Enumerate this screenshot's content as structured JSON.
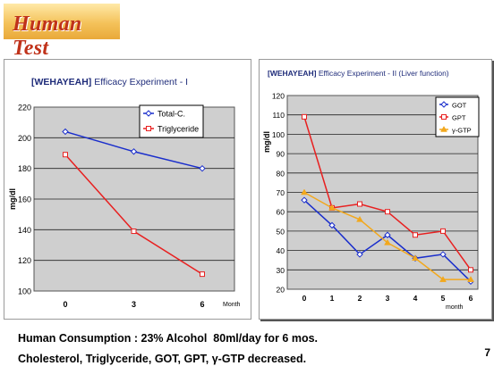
{
  "slide": {
    "title": "Human Test",
    "footer_line1": "Human Consumption : 23% Alcohol  80ml/day for 6 mos.",
    "footer_line2": "Cholesterol, Triglyceride, GOT, GPT, γ-GTP decreased.",
    "page_number": "7",
    "colors": {
      "title": "#c0321a",
      "title_bg": "#f4c25a",
      "plot_bg": "#cfcfcf"
    }
  },
  "chart_data": [
    {
      "type": "line",
      "title_prefix": "[WEHAYEAH]",
      "title_rest": " Efficacy Experiment - I",
      "ylabel": "mg/dl",
      "xlabel": "Month",
      "ylim": [
        100,
        220
      ],
      "yticks": [
        100,
        120,
        140,
        160,
        180,
        200,
        220
      ],
      "x": [
        0,
        3,
        6
      ],
      "x_tick_labels": [
        "0",
        "3",
        "6"
      ],
      "grid": true,
      "legend_position": "top-right",
      "series": [
        {
          "name": "Total-C.",
          "values": [
            204,
            191,
            180
          ],
          "color": "#1a2ecc"
        },
        {
          "name": "Triglyceride",
          "values": [
            189,
            139,
            111
          ],
          "color": "#e82020"
        }
      ]
    },
    {
      "type": "line",
      "title_prefix": "[WEHAYEAH]",
      "title_rest": " Efficacy Experiment - II (Liver function)",
      "ylabel": "mg/dl",
      "xlabel": "month",
      "ylim": [
        20,
        120
      ],
      "yticks": [
        20,
        30,
        40,
        50,
        60,
        70,
        80,
        90,
        100,
        110,
        120
      ],
      "x": [
        0,
        1,
        2,
        3,
        4,
        5,
        6
      ],
      "x_tick_labels": [
        "0",
        "1",
        "2",
        "3",
        "4",
        "5",
        "6"
      ],
      "grid": true,
      "legend_position": "top-right",
      "series": [
        {
          "name": "GOT",
          "values": [
            66,
            53,
            38,
            48,
            36,
            38,
            24
          ],
          "color": "#1a2ecc"
        },
        {
          "name": "GPT",
          "values": [
            109,
            62,
            64,
            60,
            48,
            50,
            30
          ],
          "color": "#e82020"
        },
        {
          "name": "γ-GTP",
          "values": [
            70,
            62,
            56,
            44,
            36,
            25,
            25
          ],
          "color": "#f2a81d"
        }
      ]
    }
  ]
}
